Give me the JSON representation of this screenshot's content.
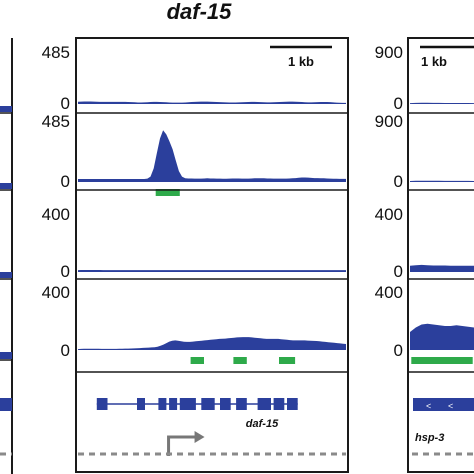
{
  "chart_data": {
    "type": "area",
    "title": "daf-15",
    "panels": [
      {
        "gene_label": "daf-15",
        "scale_bar": "1 kb",
        "tracks": [
          {
            "ymax_label": "485",
            "ymin_label": "0",
            "ylim": [
              0,
              485
            ],
            "values": [
              18,
              19,
              20,
              20,
              20,
              19,
              18,
              17,
              17,
              17,
              17,
              17,
              17,
              17,
              17,
              17,
              16,
              15,
              14,
              12,
              12,
              13,
              14,
              16,
              17,
              17,
              16,
              15,
              14,
              12,
              11,
              11,
              11,
              11,
              12,
              14,
              16,
              17,
              18,
              19,
              19,
              19,
              18,
              17,
              16,
              15,
              14,
              13,
              12,
              12,
              12,
              13,
              14,
              15,
              16,
              17,
              17,
              16,
              15,
              14,
              13,
              13,
              14,
              15,
              16,
              17,
              18,
              19,
              19,
              18,
              17,
              16,
              14,
              13,
              13,
              14,
              15,
              16,
              16,
              16,
              15,
              13,
              11,
              10,
              9,
              9
            ]
          },
          {
            "ymax_label": "485",
            "ymin_label": "0",
            "ylim": [
              0,
              485
            ],
            "values": [
              22,
              22,
              22,
              22,
              22,
              22,
              22,
              22,
              22,
              22,
              22,
              22,
              22,
              22,
              22,
              22,
              22,
              22,
              22,
              22,
              22,
              22,
              25,
              40,
              100,
              210,
              320,
              380,
              350,
              300,
              240,
              160,
              80,
              40,
              28,
              26,
              26,
              25,
              25,
              25,
              26,
              27,
              26,
              26,
              25,
              25,
              24,
              24,
              25,
              26,
              26,
              26,
              25,
              25,
              25,
              26,
              27,
              28,
              28,
              27,
              26,
              26,
              25,
              25,
              25,
              25,
              25,
              26,
              27,
              29,
              31,
              33,
              33,
              32,
              30,
              29,
              29,
              28,
              27,
              26,
              25,
              24,
              24,
              23,
              23,
              23
            ],
            "peak_boxes": [
              [
                0.29,
                0.38
              ]
            ]
          },
          {
            "ymax_label": "400",
            "ymin_label": "0",
            "ylim": [
              0,
              400
            ],
            "values": [
              12,
              13,
              13,
              13,
              13,
              13,
              13,
              13,
              12,
              12,
              12,
              12,
              12,
              12,
              12,
              12,
              12,
              12,
              12,
              12,
              12,
              12,
              12,
              12,
              12,
              12,
              12,
              12,
              12,
              12,
              12,
              12,
              12,
              12,
              12,
              12,
              12,
              12,
              12,
              12,
              12,
              12,
              12,
              12,
              12,
              12,
              12,
              12,
              12,
              12,
              12,
              12,
              12,
              12,
              12,
              12,
              12,
              12,
              12,
              12,
              12,
              12,
              12,
              12,
              12,
              12,
              12,
              12,
              12,
              12,
              12,
              12,
              12,
              12,
              12,
              12,
              12,
              12,
              12,
              12,
              12,
              12,
              12,
              12,
              12,
              12
            ]
          },
          {
            "ymax_label": "400",
            "ymin_label": "0",
            "ylim": [
              0,
              400
            ],
            "values": [
              6,
              7,
              8,
              8,
              8,
              8,
              8,
              8,
              7,
              7,
              7,
              7,
              7,
              7,
              8,
              8,
              9,
              9,
              10,
              11,
              12,
              13,
              14,
              15,
              16,
              17,
              18,
              22,
              28,
              36,
              46,
              56,
              62,
              64,
              62,
              58,
              55,
              54,
              54,
              56,
              58,
              60,
              62,
              64,
              66,
              68,
              70,
              72,
              74,
              75,
              76,
              78,
              80,
              82,
              84,
              85,
              86,
              86,
              86,
              84,
              82,
              80,
              78,
              76,
              74,
              74,
              74,
              74,
              74,
              72,
              70,
              68,
              66,
              64,
              64,
              64,
              64,
              64,
              63,
              62,
              61,
              60,
              58,
              56,
              54,
              52,
              50,
              48,
              46,
              44,
              42,
              40
            ],
            "peak_boxes": [
              [
                0.42,
                0.47
              ],
              [
                0.58,
                0.63
              ],
              [
                0.75,
                0.81
              ]
            ]
          }
        ],
        "gene_model": {
          "exons": [
            [
              0.07,
              0.11
            ],
            [
              0.22,
              0.25
            ],
            [
              0.3,
              0.33
            ],
            [
              0.34,
              0.37
            ],
            [
              0.38,
              0.44
            ],
            [
              0.46,
              0.51
            ],
            [
              0.53,
              0.57
            ],
            [
              0.59,
              0.63
            ],
            [
              0.67,
              0.72
            ],
            [
              0.73,
              0.77
            ],
            [
              0.78,
              0.82
            ]
          ],
          "tss": 0.42
        }
      },
      {
        "gene_label": "hsp-3",
        "scale_bar": "1 kb",
        "tracks": [
          {
            "ymax_label": "900",
            "ymin_label": "0",
            "ylim": [
              0,
              900
            ],
            "values": [
              14,
              16,
              18,
              18,
              17,
              16,
              15,
              15,
              15,
              15,
              15,
              14
            ]
          },
          {
            "ymax_label": "900",
            "ymin_label": "0",
            "ylim": [
              0,
              900
            ],
            "values": [
              14,
              16,
              18,
              18,
              17,
              16,
              15,
              15,
              15,
              15,
              15,
              14
            ]
          },
          {
            "ymax_label": "400",
            "ymin_label": "0",
            "ylim": [
              0,
              400
            ],
            "values": [
              40,
              44,
              46,
              44,
              42,
              42,
              42,
              40,
              40,
              40,
              40,
              40
            ]
          },
          {
            "ymax_label": "400",
            "ymin_label": "0",
            "ylim": [
              0,
              400
            ],
            "values": [
              120,
              150,
              170,
              175,
              170,
              165,
              160,
              160,
              165,
              160,
              155,
              150
            ],
            "peak_boxes": [
              [
                0.02,
                0.98
              ]
            ]
          }
        ]
      }
    ]
  },
  "panel_center": {
    "title": "daf-15",
    "scale_bar_label": "1 kb",
    "gene_label": "daf-15",
    "tracks": [
      {
        "ymax": "485",
        "ymin": "0"
      },
      {
        "ymax": "485",
        "ymin": "0"
      },
      {
        "ymax": "400",
        "ymin": "0"
      },
      {
        "ymax": "400",
        "ymin": "0"
      }
    ]
  },
  "panel_right": {
    "scale_bar_label": "1 kb",
    "gene_label": "hsp-3",
    "tracks": [
      {
        "ymax": "900",
        "ymin": "0"
      },
      {
        "ymax": "900",
        "ymin": "0"
      },
      {
        "ymax": "400",
        "ymin": "0"
      },
      {
        "ymax": "400",
        "ymin": "0"
      }
    ]
  },
  "colors": {
    "signal": "#2b3f9c",
    "peak": "#2eaa4a",
    "frame": "#1a1a1a",
    "tss_arrow": "#777777",
    "baseline_dash": "#8a8a8a"
  }
}
